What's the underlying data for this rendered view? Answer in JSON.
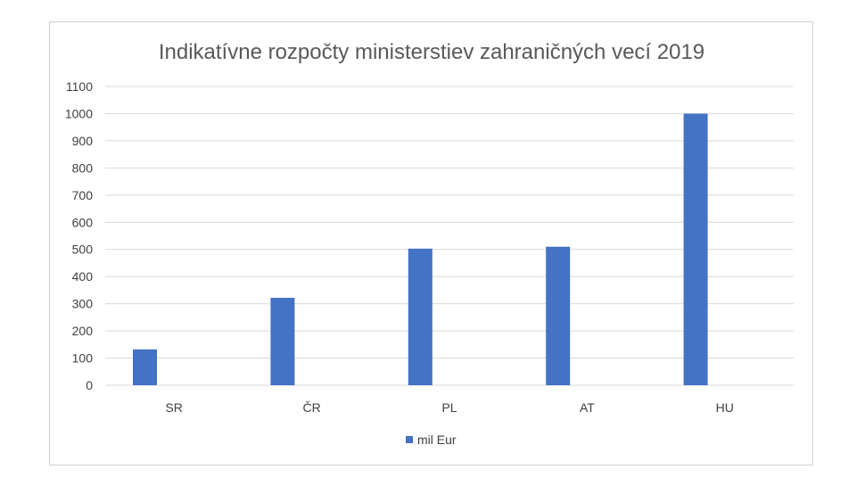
{
  "chart_data": {
    "type": "bar",
    "title": "Indikatívne rozpočty ministerstiev zahraničných vecí 2019",
    "categories": [
      "SR",
      "ČR",
      "PL",
      "AT",
      "HU"
    ],
    "series": [
      {
        "name": "mil Eur",
        "values": [
          132,
          322,
          503,
          510,
          1000
        ],
        "color": "#4472c4"
      }
    ],
    "xlabel": "",
    "ylabel": "",
    "ylim": [
      0,
      1100
    ],
    "yticks": [
      0,
      100,
      200,
      300,
      400,
      500,
      600,
      700,
      800,
      900,
      1000,
      1100
    ],
    "grid": true,
    "legend_position": "bottom"
  }
}
